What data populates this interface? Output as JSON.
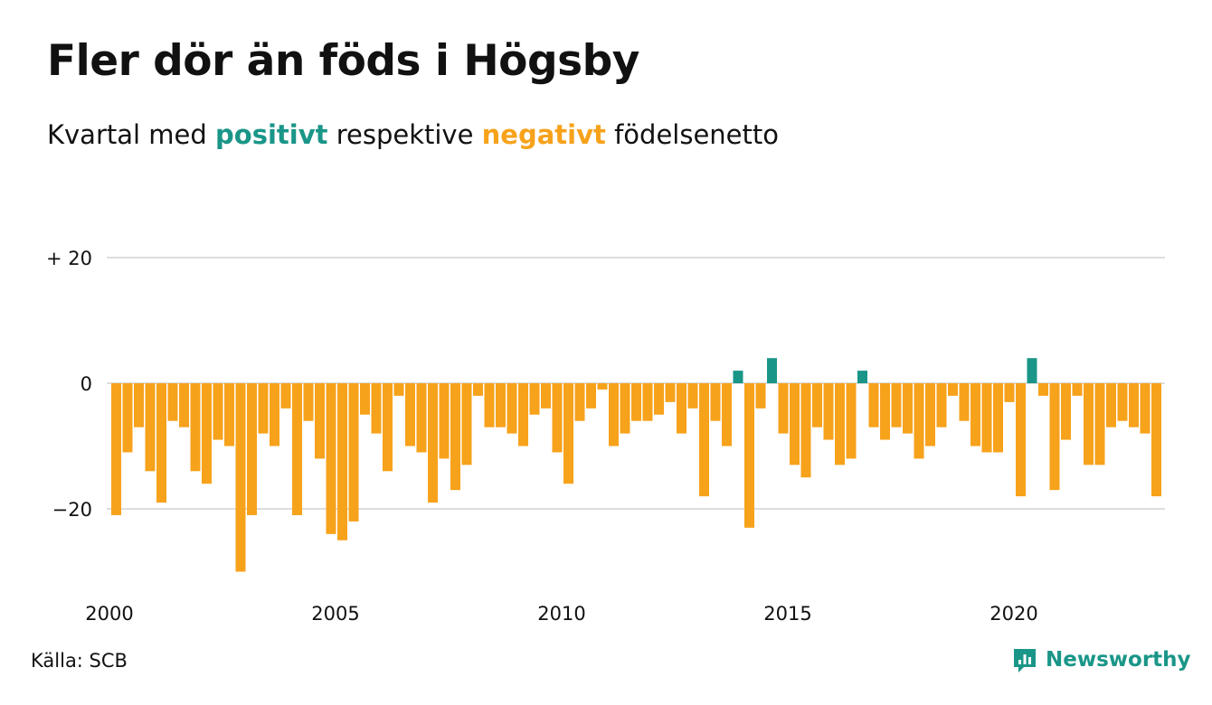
{
  "title": "Fler dör än föds i Högsby",
  "subtitle": {
    "before": "Kvartal med",
    "positive": "positivt",
    "middle": "respektive",
    "negative": "negativt",
    "after": "födelsenetto"
  },
  "source": "Källa: SCB",
  "brand": {
    "name": "Newsworthy",
    "icon": "newsworthy-logo-icon"
  },
  "colors": {
    "positive": "#1a9688",
    "negative": "#f7a21b",
    "grid": "#dddddd",
    "text": "#111111"
  },
  "chart_data": {
    "type": "bar",
    "frequency": "quarterly",
    "x_start": "2000 Q1",
    "x_ticks": [
      "2000",
      "2005",
      "2010",
      "2015",
      "2020"
    ],
    "y_ticks": [
      {
        "value": 20,
        "label": "+ 20"
      },
      {
        "value": 0,
        "label": "0"
      },
      {
        "value": -20,
        "label": "−20"
      }
    ],
    "ylim": [
      -30,
      20
    ],
    "grid": true,
    "values": [
      -21,
      -11,
      -7,
      -14,
      -19,
      -6,
      -7,
      -14,
      -16,
      -9,
      -10,
      -30,
      -21,
      -8,
      -10,
      -4,
      -21,
      -6,
      -12,
      -24,
      -25,
      -22,
      -5,
      -8,
      -14,
      -2,
      -10,
      -11,
      -19,
      -12,
      -17,
      -13,
      -2,
      -7,
      -7,
      -8,
      -10,
      -5,
      -4,
      -11,
      -16,
      -6,
      -4,
      -1,
      -10,
      -8,
      -6,
      -6,
      -5,
      -3,
      -8,
      -4,
      -18,
      -6,
      -10,
      2,
      -23,
      -4,
      4,
      -8,
      -13,
      -15,
      -7,
      -9,
      -13,
      -12,
      2,
      -7,
      -9,
      -7,
      -8,
      -12,
      -10,
      -7,
      -2,
      -6,
      -10,
      -11,
      -11,
      -3,
      -18,
      4,
      -2,
      -17,
      -9,
      -2,
      -13,
      -13,
      -7,
      -6,
      -7,
      -8,
      -18
    ]
  }
}
